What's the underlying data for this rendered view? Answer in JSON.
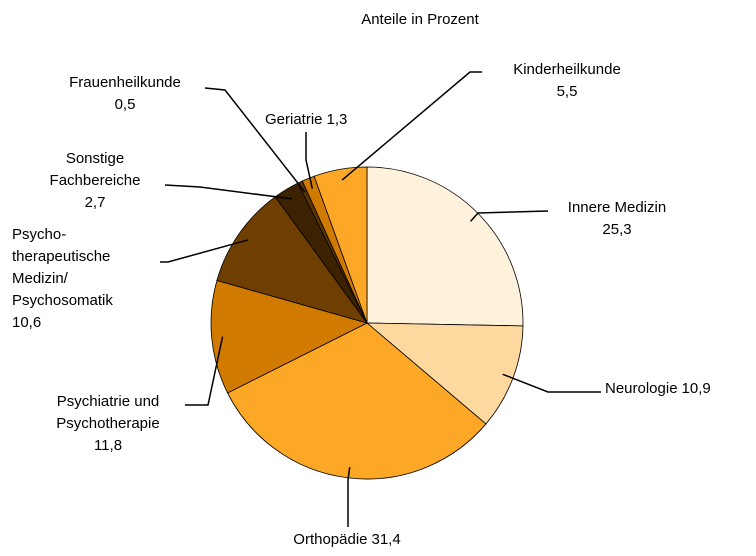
{
  "chart_data": {
    "type": "pie",
    "title": "Anteile in Prozent",
    "categories": [
      "Innere Medizin",
      "Neurologie",
      "Orthopädie",
      "Psychiatrie und\nPsychotherapie",
      "Psycho-\ntherapeutische\nMedizin/\nPsychosomatik",
      "Sonstige\nFachbereiche",
      "Frauenheilkunde",
      "Geriatrie",
      "Kinderheilkunde"
    ],
    "values": [
      25.3,
      10.9,
      31.4,
      11.8,
      10.6,
      2.7,
      0.5,
      1.3,
      5.5
    ],
    "value_labels": [
      "25,3",
      "10,9",
      "31,4",
      "11,8",
      "10,6",
      "2,7",
      "0,5",
      "1,3",
      "5,5"
    ],
    "colors": [
      "#fff2dc",
      "#fdd9a0",
      "#fca726",
      "#d07a00",
      "#6e3f00",
      "#3d2200",
      "#5a3300",
      "#d07a00",
      "#fca726"
    ]
  }
}
